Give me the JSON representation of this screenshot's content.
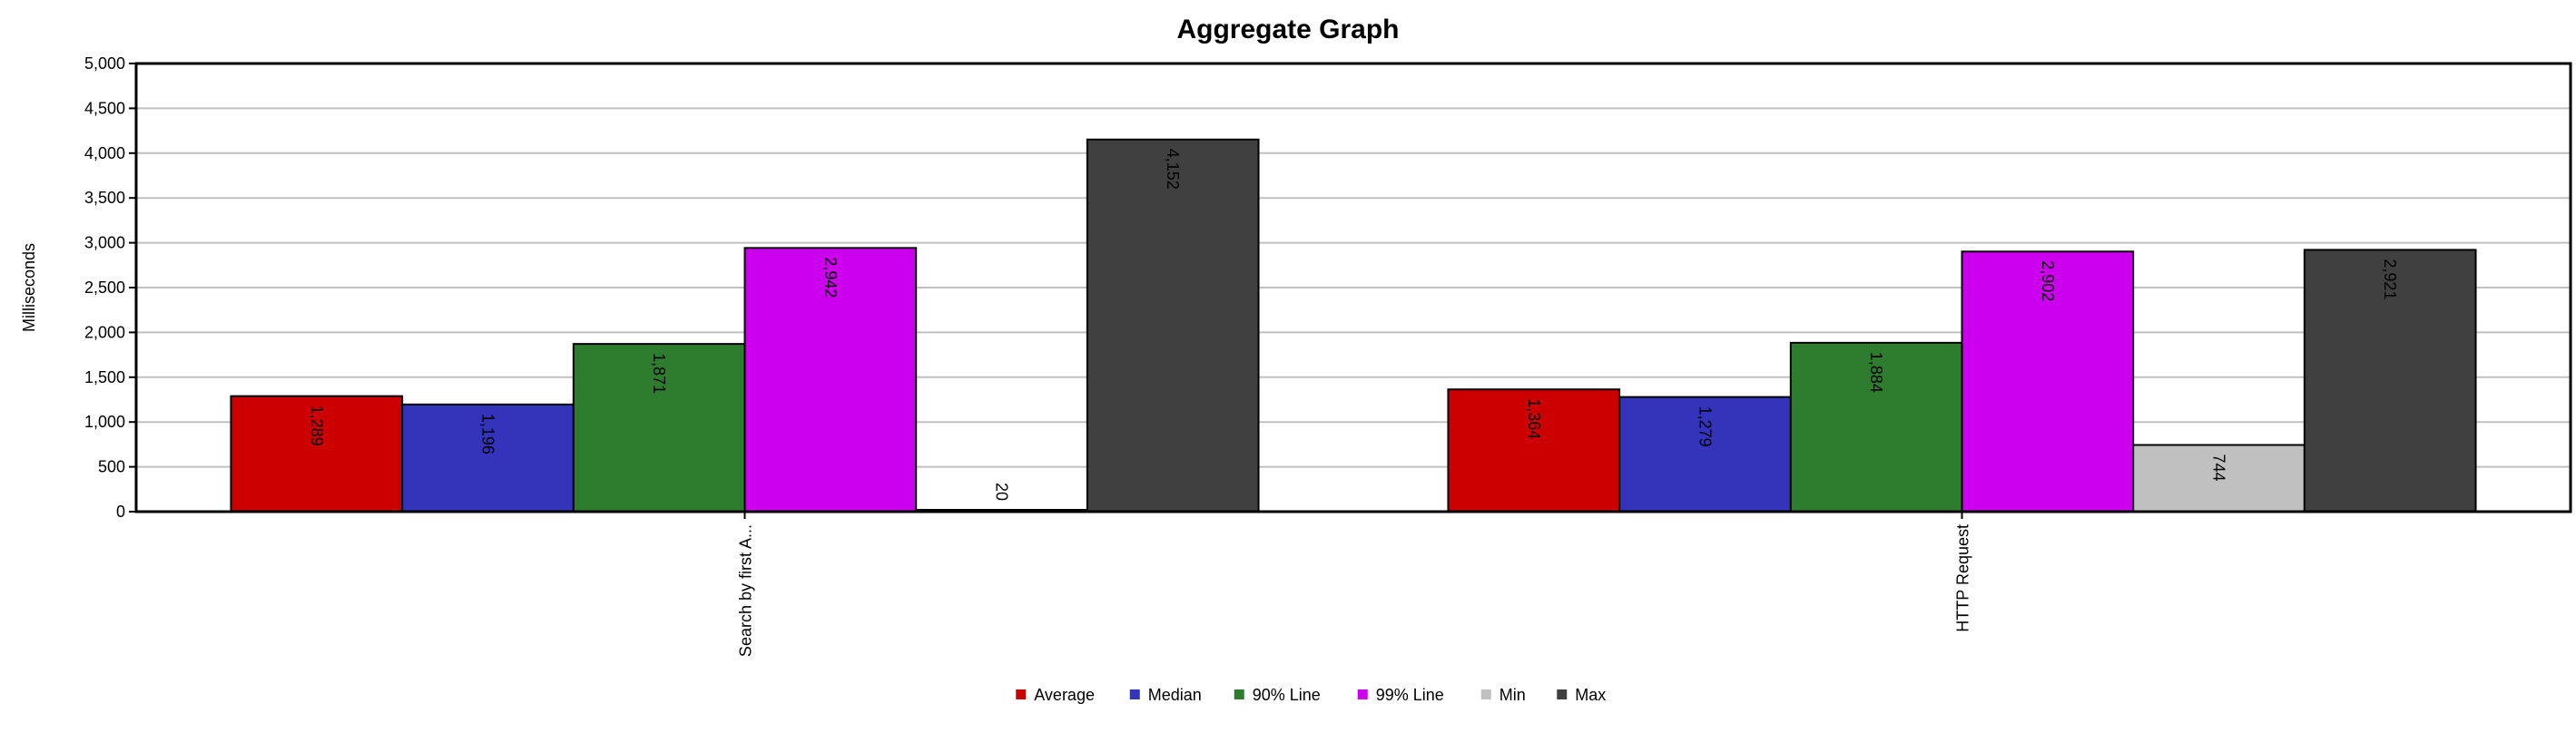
{
  "chart_data": {
    "type": "bar",
    "title": "Aggregate Graph",
    "xlabel": "",
    "ylabel": "Milliseconds",
    "ylim": [
      0,
      5000
    ],
    "yticks": [
      "0",
      "500",
      "1,000",
      "1,500",
      "2,000",
      "2,500",
      "3,000",
      "3,500",
      "4,000",
      "4,500",
      "5,000"
    ],
    "grid": true,
    "legend_position": "bottom",
    "categories": [
      "Search by first A...",
      "HTTP Request"
    ],
    "series": [
      {
        "name": "Average",
        "color": "#cc0000",
        "values": [
          1289,
          1364
        ],
        "labels": [
          "1,289",
          "1,364"
        ]
      },
      {
        "name": "Median",
        "color": "#3333bb",
        "values": [
          1196,
          1279
        ],
        "labels": [
          "1,196",
          "1,279"
        ]
      },
      {
        "name": "90% Line",
        "color": "#2e7d2e",
        "values": [
          1871,
          1884
        ],
        "labels": [
          "1,871",
          "1,884"
        ]
      },
      {
        "name": "99% Line",
        "color": "#cc00ee",
        "values": [
          2942,
          2902
        ],
        "labels": [
          "2,942",
          "2,902"
        ]
      },
      {
        "name": "Min",
        "color": "#c0c0c0",
        "values": [
          20,
          744
        ],
        "labels": [
          "20",
          "744"
        ]
      },
      {
        "name": "Max",
        "color": "#404040",
        "values": [
          4152,
          2921
        ],
        "labels": [
          "4,152",
          "2,921"
        ]
      }
    ]
  }
}
